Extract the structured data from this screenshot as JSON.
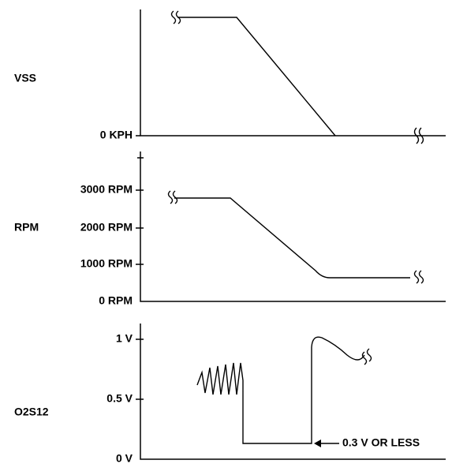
{
  "panels": [
    {
      "label": "VSS",
      "ticks": [
        "0 KPH"
      ]
    },
    {
      "label": "RPM",
      "ticks": [
        "3000 RPM",
        "2000 RPM",
        "1000 RPM",
        "0 RPM"
      ]
    },
    {
      "label": "O2S12",
      "ticks": [
        "1 V",
        "0.5 V",
        "0 V"
      ],
      "annotation": "0.3 V OR LESS"
    }
  ]
}
